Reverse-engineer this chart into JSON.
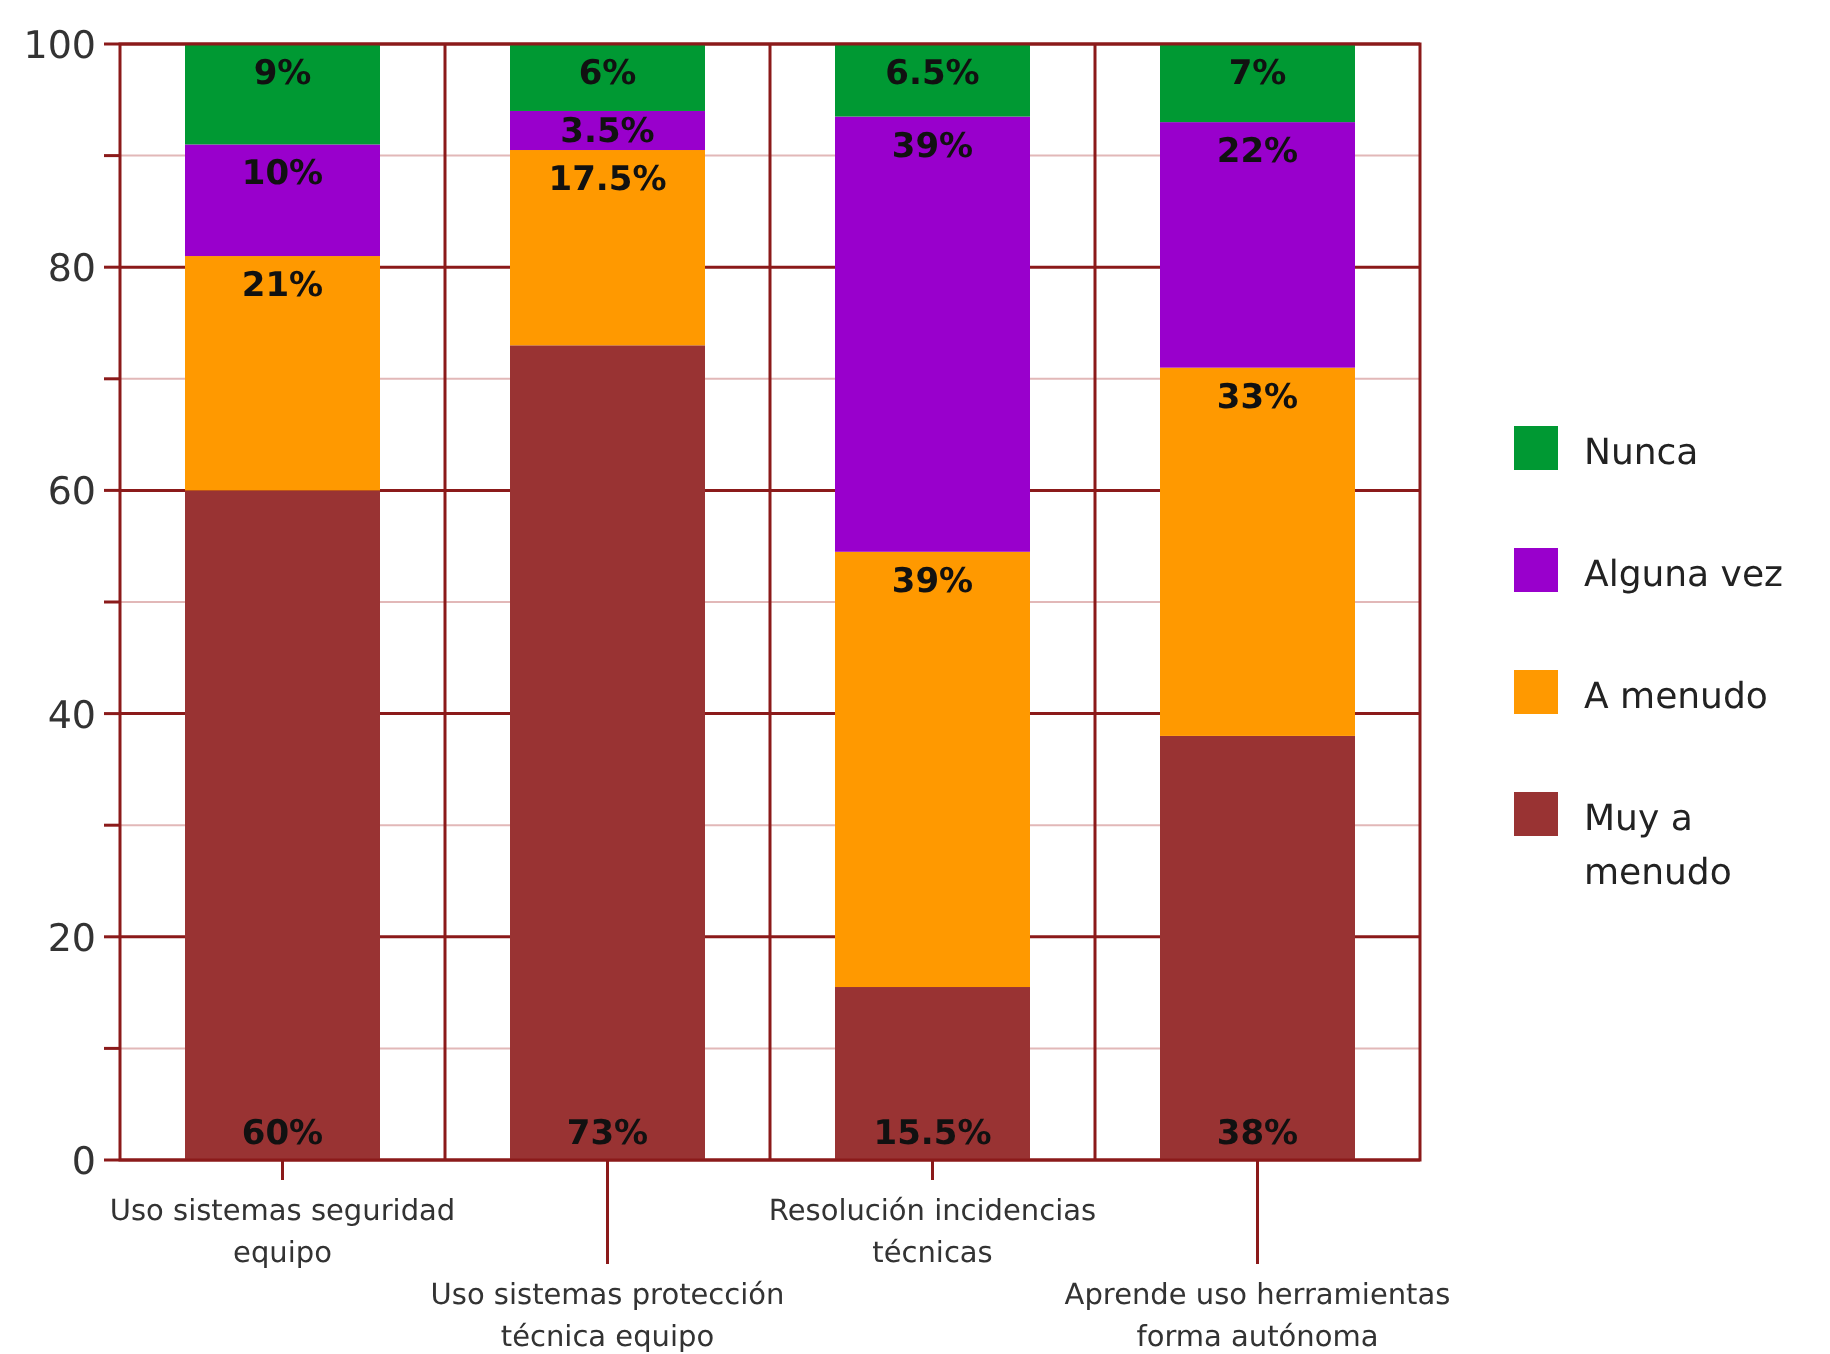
{
  "chart_data": {
    "type": "bar",
    "stacked": true,
    "categories": [
      "Uso sistemas seguridad equipo",
      "Uso sistemas protección técnica equipo",
      "Resolución incidencias técnicas",
      "Aprende uso herramientas forma autónoma"
    ],
    "series": [
      {
        "name": "Muy a menudo",
        "color": "#993333",
        "values": [
          60,
          73,
          15.5,
          38
        ],
        "value_labels": [
          "60%",
          "73%",
          "15.5%",
          "38%"
        ]
      },
      {
        "name": "A menudo",
        "color": "#ff9900",
        "values": [
          21,
          17.5,
          39,
          33
        ],
        "value_labels": [
          "21%",
          "17.5%",
          "39%",
          "33%"
        ]
      },
      {
        "name": "Alguna vez",
        "color": "#9900cc",
        "values": [
          10,
          3.5,
          39,
          22
        ],
        "value_labels": [
          "10%",
          "3.5%",
          "39%",
          "22%"
        ]
      },
      {
        "name": "Nunca",
        "color": "#009933",
        "values": [
          9,
          6,
          6.5,
          7
        ],
        "value_labels": [
          "9%",
          "6%",
          "6.5%",
          "7%"
        ]
      }
    ],
    "ylim": [
      0,
      100
    ],
    "yticks": [
      0,
      {
        "value": 10,
        "label": null
      },
      20,
      {
        "value": 30,
        "label": null
      },
      40,
      {
        "value": 50,
        "label": null
      },
      60,
      {
        "value": 70,
        "label": null
      },
      80,
      {
        "value": 90,
        "label": null
      },
      100
    ],
    "grid": true,
    "legend": "right"
  }
}
